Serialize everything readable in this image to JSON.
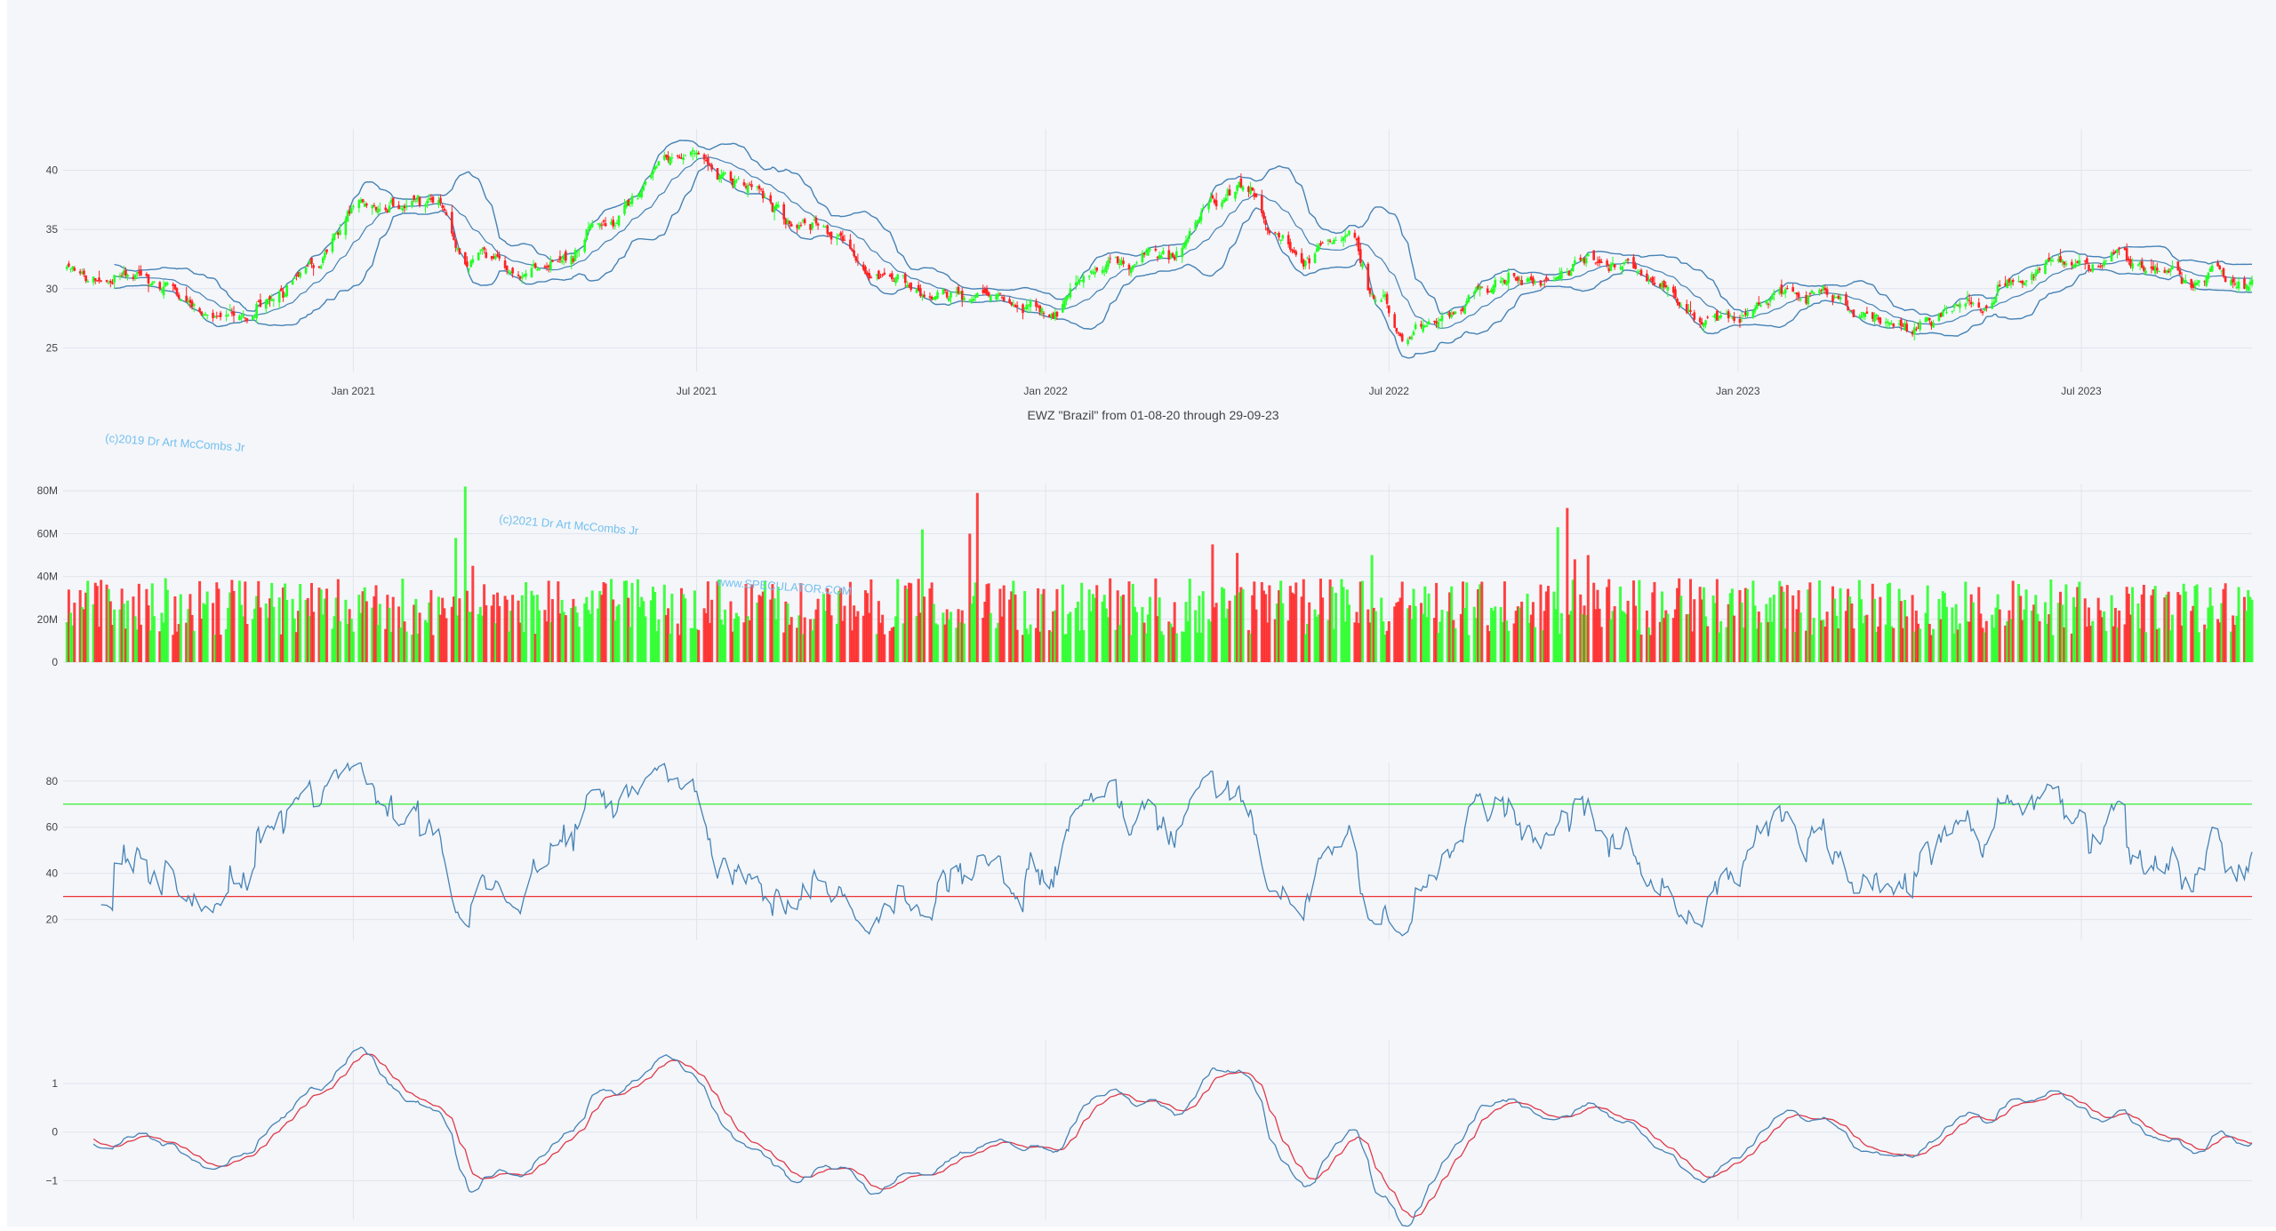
{
  "title": "EWZ \"Brazil\" from 01-08-20 through 29-09-23",
  "watermarks": {
    "copyright_2019": "(c)2019 Dr Art McCombs Jr",
    "copyright_2021": "(c)2021 Dr Art McCombs Jr",
    "website": "www.SPECULATOR.COM"
  },
  "colors": {
    "background": "#f4f6fa",
    "increasing": "#22ff22",
    "decreasing": "#ff2222",
    "line": "#4682b4",
    "signal": "#e03a4a",
    "upper_band": "#33ee33",
    "lower_band": "#ee3333",
    "watermark": "#74c0ee"
  },
  "chart_data": [
    {
      "type": "candlestick",
      "name": "price",
      "x_range": [
        "2020-08-01",
        "2023-09-29"
      ],
      "x_ticks": [
        {
          "date": "2021-01-01",
          "label": "Jan 2021"
        },
        {
          "date": "2021-07-01",
          "label": "Jul 2021"
        },
        {
          "date": "2022-01-01",
          "label": "Jan 2022"
        },
        {
          "date": "2022-07-01",
          "label": "Jul 2022"
        },
        {
          "date": "2023-01-01",
          "label": "Jan 2023"
        },
        {
          "date": "2023-07-01",
          "label": "Jul 2023"
        }
      ],
      "y_ticks": [
        {
          "value": 25,
          "label": "25"
        },
        {
          "value": 30,
          "label": "30"
        },
        {
          "value": 35,
          "label": "35"
        },
        {
          "value": 40,
          "label": "40"
        }
      ],
      "ylim": [
        23,
        43.5
      ],
      "close_path": [
        [
          "2020-08-03",
          31.8
        ],
        [
          "2020-08-20",
          30.8
        ],
        [
          "2020-09-10",
          30.5
        ],
        [
          "2020-09-25",
          29.8
        ],
        [
          "2020-10-09",
          28.5
        ],
        [
          "2020-10-30",
          27.5
        ],
        [
          "2020-11-20",
          29.5
        ],
        [
          "2020-12-10",
          32.5
        ],
        [
          "2020-12-31",
          36.3
        ],
        [
          "2021-01-15",
          36.8
        ],
        [
          "2021-02-01",
          37.0
        ],
        [
          "2021-02-15",
          36.5
        ],
        [
          "2021-03-01",
          33.0
        ],
        [
          "2021-03-15",
          33.5
        ],
        [
          "2021-04-01",
          31.0
        ],
        [
          "2021-04-20",
          32.5
        ],
        [
          "2021-05-10",
          35.5
        ],
        [
          "2021-06-01",
          38.5
        ],
        [
          "2021-06-15",
          41.5
        ],
        [
          "2021-06-29",
          41.8
        ],
        [
          "2021-07-15",
          39.5
        ],
        [
          "2021-08-01",
          38.5
        ],
        [
          "2021-08-20",
          36.0
        ],
        [
          "2021-09-10",
          34.5
        ],
        [
          "2021-10-01",
          31.5
        ],
        [
          "2021-10-25",
          30.0
        ],
        [
          "2021-11-15",
          29.5
        ],
        [
          "2021-12-10",
          28.5
        ],
        [
          "2022-01-01",
          27.3
        ],
        [
          "2022-01-20",
          30.5
        ],
        [
          "2022-02-15",
          32.5
        ],
        [
          "2022-03-10",
          33.5
        ],
        [
          "2022-04-01",
          37.0
        ],
        [
          "2022-04-15",
          38.2
        ],
        [
          "2022-05-01",
          34.5
        ],
        [
          "2022-05-15",
          32.5
        ],
        [
          "2022-06-01",
          34.5
        ],
        [
          "2022-06-10",
          35.0
        ],
        [
          "2022-06-25",
          28.5
        ],
        [
          "2022-07-10",
          26.5
        ],
        [
          "2022-07-28",
          27.0
        ],
        [
          "2022-08-20",
          29.5
        ],
        [
          "2022-09-15",
          31.5
        ],
        [
          "2022-10-03",
          31.5
        ],
        [
          "2022-10-25",
          32.5
        ],
        [
          "2022-11-15",
          31.0
        ],
        [
          "2022-12-01",
          29.5
        ],
        [
          "2022-12-15",
          27.5
        ],
        [
          "2023-01-01",
          27.5
        ],
        [
          "2023-01-20",
          29.5
        ],
        [
          "2023-02-10",
          29.5
        ],
        [
          "2023-03-01",
          28.5
        ],
        [
          "2023-03-20",
          26.5
        ],
        [
          "2023-04-01",
          27.0
        ],
        [
          "2023-04-20",
          28.0
        ],
        [
          "2023-05-10",
          29.5
        ],
        [
          "2023-06-01",
          31.0
        ],
        [
          "2023-06-20",
          32.5
        ],
        [
          "2023-07-10",
          32.5
        ],
        [
          "2023-07-25",
          33.0
        ],
        [
          "2023-08-10",
          31.5
        ],
        [
          "2023-08-25",
          30.5
        ],
        [
          "2023-09-10",
          31.5
        ],
        [
          "2023-09-29",
          30.5
        ]
      ],
      "bollinger_period": 20,
      "bollinger_std": 2,
      "moving_average_period": 20
    },
    {
      "type": "bar",
      "name": "volume",
      "y_ticks": [
        {
          "value": 0,
          "label": "0"
        },
        {
          "value": 20000000,
          "label": "20M"
        },
        {
          "value": 40000000,
          "label": "40M"
        },
        {
          "value": 60000000,
          "label": "60M"
        },
        {
          "value": 80000000,
          "label": "80M"
        }
      ],
      "ylim": [
        0,
        83000000
      ],
      "typical_volume_millions": 28,
      "volume_spikes_millions": [
        [
          "2021-03-01",
          82,
          "up"
        ],
        [
          "2021-02-24",
          58,
          "up"
        ],
        [
          "2021-02-20",
          52,
          "down"
        ],
        [
          "2021-03-05",
          45,
          "down"
        ],
        [
          "2021-10-28",
          62,
          "up"
        ],
        [
          "2021-11-26",
          79,
          "down"
        ],
        [
          "2021-11-22",
          60,
          "down"
        ],
        [
          "2022-03-30",
          55,
          "down"
        ],
        [
          "2022-04-12",
          51,
          "down"
        ],
        [
          "2022-06-22",
          50,
          "up"
        ],
        [
          "2022-10-03",
          72,
          "down"
        ],
        [
          "2022-09-28",
          63,
          "up"
        ],
        [
          "2022-10-14",
          50,
          "down"
        ],
        [
          "2022-11-12",
          50,
          "down"
        ],
        [
          "2022-10-07",
          48,
          "down"
        ]
      ]
    },
    {
      "type": "line",
      "name": "rsi",
      "y_ticks": [
        {
          "value": 20,
          "label": "20"
        },
        {
          "value": 40,
          "label": "40"
        },
        {
          "value": 60,
          "label": "60"
        },
        {
          "value": 80,
          "label": "80"
        }
      ],
      "ylim": [
        11,
        88
      ],
      "upper_level": 70,
      "lower_level": 30,
      "period": 14
    },
    {
      "type": "line",
      "name": "macd",
      "y_ticks": [
        {
          "value": -1,
          "label": "−1"
        },
        {
          "value": 0,
          "label": "0"
        },
        {
          "value": 1,
          "label": "1"
        }
      ],
      "ylim": [
        -1.8,
        1.9
      ],
      "signal_period": 9
    }
  ]
}
